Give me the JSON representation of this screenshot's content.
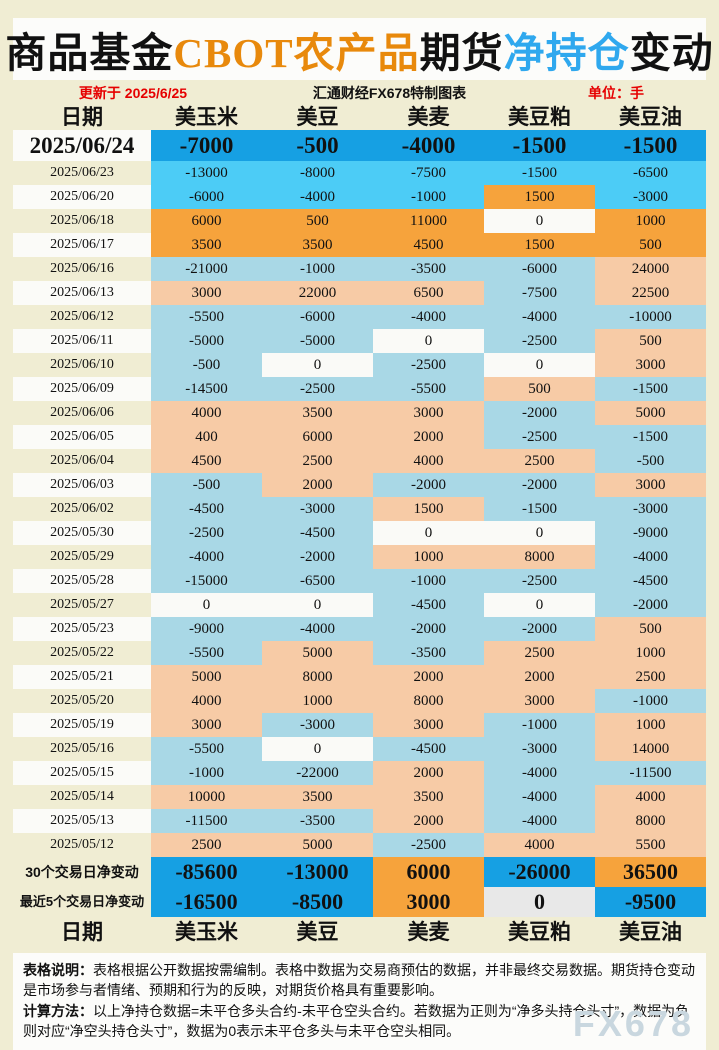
{
  "title": {
    "part1": "商品基金",
    "part2": "CBOT农产品",
    "part3": "期货",
    "part4": "净持仓",
    "part5": "变动"
  },
  "meta": {
    "updated": "更新于 2025/6/25",
    "source": "汇通财经FX678特制图表",
    "unit": "单位：手"
  },
  "chart_data": {
    "type": "table",
    "title": "商品基金CBOT农产品期货净持仓变动",
    "unit": "手",
    "columns": [
      "日期",
      "美玉米",
      "美豆",
      "美麦",
      "美豆粕",
      "美豆油"
    ],
    "rows": [
      {
        "date": "2025/06/24",
        "values": [
          -7000,
          -500,
          -4000,
          -1500,
          -1500
        ]
      },
      {
        "date": "2025/06/23",
        "values": [
          -13000,
          -8000,
          -7500,
          -1500,
          -6500
        ]
      },
      {
        "date": "2025/06/20",
        "values": [
          -6000,
          -4000,
          -1000,
          1500,
          -3000
        ]
      },
      {
        "date": "2025/06/18",
        "values": [
          6000,
          500,
          11000,
          0,
          1000
        ]
      },
      {
        "date": "2025/06/17",
        "values": [
          3500,
          3500,
          4500,
          1500,
          500
        ]
      },
      {
        "date": "2025/06/16",
        "values": [
          -21000,
          -1000,
          -3500,
          -6000,
          24000
        ]
      },
      {
        "date": "2025/06/13",
        "values": [
          3000,
          22000,
          6500,
          -7500,
          22500
        ]
      },
      {
        "date": "2025/06/12",
        "values": [
          -5500,
          -6000,
          -4000,
          -4000,
          -10000
        ]
      },
      {
        "date": "2025/06/11",
        "values": [
          -5000,
          -5000,
          0,
          -2500,
          500
        ]
      },
      {
        "date": "2025/06/10",
        "values": [
          -500,
          0,
          -2500,
          0,
          3000
        ]
      },
      {
        "date": "2025/06/09",
        "values": [
          -14500,
          -2500,
          -5500,
          500,
          -1500
        ]
      },
      {
        "date": "2025/06/06",
        "values": [
          4000,
          3500,
          3000,
          -2000,
          5000
        ]
      },
      {
        "date": "2025/06/05",
        "values": [
          400,
          6000,
          2000,
          -2500,
          -1500
        ]
      },
      {
        "date": "2025/06/04",
        "values": [
          4500,
          2500,
          4000,
          2500,
          -500
        ]
      },
      {
        "date": "2025/06/03",
        "values": [
          -500,
          2000,
          -2000,
          -2000,
          3000
        ]
      },
      {
        "date": "2025/06/02",
        "values": [
          -4500,
          -3000,
          1500,
          -1500,
          -3000
        ]
      },
      {
        "date": "2025/05/30",
        "values": [
          -2500,
          -4500,
          0,
          0,
          -9000
        ]
      },
      {
        "date": "2025/05/29",
        "values": [
          -4000,
          -2000,
          1000,
          8000,
          -4000
        ]
      },
      {
        "date": "2025/05/28",
        "values": [
          -15000,
          -6500,
          -1000,
          -2500,
          -4500
        ]
      },
      {
        "date": "2025/05/27",
        "values": [
          0,
          0,
          -4500,
          0,
          -2000
        ]
      },
      {
        "date": "2025/05/23",
        "values": [
          -9000,
          -4000,
          -2000,
          -2000,
          500
        ]
      },
      {
        "date": "2025/05/22",
        "values": [
          -5500,
          5000,
          -3500,
          2500,
          1000
        ]
      },
      {
        "date": "2025/05/21",
        "values": [
          5000,
          8000,
          2000,
          2000,
          2500
        ]
      },
      {
        "date": "2025/05/20",
        "values": [
          4000,
          1000,
          8000,
          3000,
          -1000
        ]
      },
      {
        "date": "2025/05/19",
        "values": [
          3000,
          -3000,
          3000,
          -1000,
          1000
        ]
      },
      {
        "date": "2025/05/16",
        "values": [
          -5500,
          0,
          -4500,
          -3000,
          14000
        ]
      },
      {
        "date": "2025/05/15",
        "values": [
          -1000,
          -22000,
          2000,
          -4000,
          -11500
        ]
      },
      {
        "date": "2025/05/14",
        "values": [
          10000,
          3500,
          3500,
          -4000,
          4000
        ]
      },
      {
        "date": "2025/05/13",
        "values": [
          -11500,
          -3500,
          2000,
          -4000,
          8000
        ]
      },
      {
        "date": "2025/05/12",
        "values": [
          2500,
          5000,
          -2500,
          4000,
          5500
        ]
      }
    ],
    "summary": [
      {
        "label": "30个交易日净变动",
        "values": [
          -85600,
          -13000,
          6000,
          -26000,
          36500
        ]
      },
      {
        "label": "最近5个交易日净变动",
        "values": [
          -16500,
          -8500,
          3000,
          0,
          -9500
        ]
      }
    ],
    "legend_colors": {
      "latest_negative": "#16A0E3",
      "recent_negative": "#4CCCF6",
      "recent_positive": "#F6A33C",
      "older_negative": "#A9D8E6",
      "older_positive": "#F7CBA6",
      "zero": "#FAFAF7",
      "summary_zero": "#E8E8E8"
    }
  },
  "notes": {
    "label1": "表格说明：",
    "text1": "表格根据公开数据按需编制。表格中数据为交易商预估的数据，并非最终交易数据。期货持仓变动是市场参与者情绪、预期和行为的反映，对期货价格具有重要影响。",
    "label2": "计算方法：",
    "text2": "以上净持仓数据=未平仓多头合约-未平仓空头合约。若数据为正则为“净多头持仓头寸”，数据为负则对应“净空头持仓头寸”，数据为0表示未平仓多头与未平仓空头相同。"
  },
  "watermark": "FX678"
}
